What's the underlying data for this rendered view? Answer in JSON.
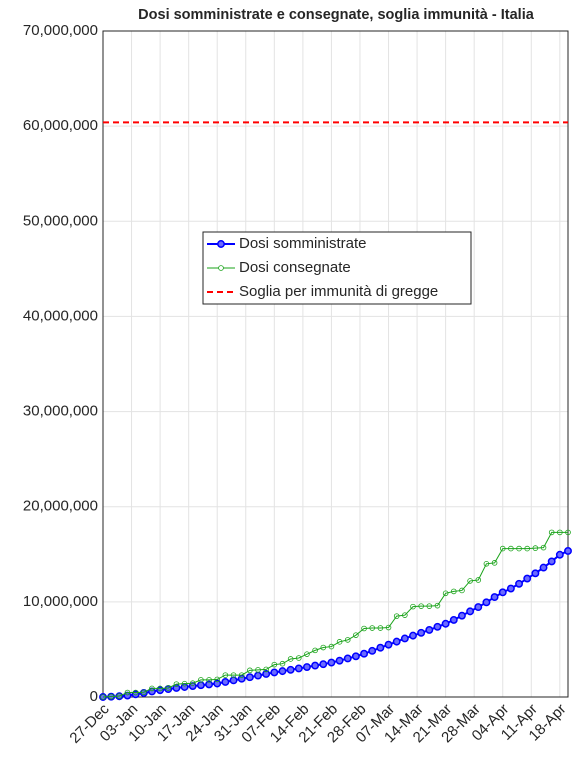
{
  "chart_data": {
    "type": "line",
    "title": "Dosi somministrate e consegnate, soglia immunità - Italia",
    "x": [
      0,
      2,
      4,
      6,
      8,
      10,
      12,
      14,
      16,
      18,
      20,
      22,
      24,
      26,
      28,
      30,
      32,
      34,
      36,
      38,
      40,
      42,
      44,
      46,
      48,
      50,
      52,
      54,
      56,
      58,
      60,
      62,
      64,
      66,
      68,
      70,
      72,
      74,
      76,
      78,
      80,
      82,
      84,
      86,
      88,
      90,
      92,
      94,
      96,
      98,
      100,
      102,
      104,
      106,
      108,
      110,
      112,
      114
    ],
    "series": [
      {
        "name": "Dosi somministrate",
        "color": "#0000ff",
        "marker": "filled",
        "values": [
          0,
          30000,
          80000,
          150000,
          280000,
          420000,
          580000,
          720000,
          830000,
          950000,
          1050000,
          1150000,
          1240000,
          1320000,
          1420000,
          1580000,
          1750000,
          1920000,
          2080000,
          2250000,
          2420000,
          2580000,
          2720000,
          2860000,
          3000000,
          3150000,
          3300000,
          3450000,
          3620000,
          3820000,
          4050000,
          4280000,
          4550000,
          4850000,
          5180000,
          5500000,
          5820000,
          6150000,
          6450000,
          6750000,
          7050000,
          7380000,
          7700000,
          8100000,
          8550000,
          9000000,
          9450000,
          9950000,
          10500000,
          11000000,
          11400000,
          11900000,
          12450000,
          13000000,
          13600000,
          14250000,
          14950000,
          15350000
        ]
      },
      {
        "name": "Dosi consegnate",
        "color": "#1aa31a",
        "marker": "hollow",
        "values": [
          0,
          50000,
          100000,
          470000,
          470000,
          500000,
          900000,
          900000,
          950000,
          1350000,
          1400000,
          1450000,
          1800000,
          1800000,
          1850000,
          2300000,
          2300000,
          2300000,
          2800000,
          2850000,
          2900000,
          3400000,
          3500000,
          4000000,
          4100000,
          4500000,
          4900000,
          5200000,
          5300000,
          5800000,
          6000000,
          6500000,
          7200000,
          7250000,
          7250000,
          7300000,
          8500000,
          8600000,
          9500000,
          9550000,
          9550000,
          9600000,
          10900000,
          11100000,
          11200000,
          12200000,
          12300000,
          14000000,
          14100000,
          15600000,
          15600000,
          15600000,
          15600000,
          15650000,
          15700000,
          17300000,
          17300000,
          17300000
        ]
      }
    ],
    "reference_line": {
      "name": "Soglia per immunità di gregge",
      "value": 60400000,
      "color": "#ff0000",
      "style": "dashed"
    },
    "xlim": [
      0,
      114
    ],
    "xticks": [
      {
        "value": 0,
        "label": "27-Dec"
      },
      {
        "value": 7,
        "label": "03-Jan"
      },
      {
        "value": 14,
        "label": "10-Jan"
      },
      {
        "value": 21,
        "label": "17-Jan"
      },
      {
        "value": 28,
        "label": "24-Jan"
      },
      {
        "value": 35,
        "label": "31-Jan"
      },
      {
        "value": 42,
        "label": "07-Feb"
      },
      {
        "value": 49,
        "label": "14-Feb"
      },
      {
        "value": 56,
        "label": "21-Feb"
      },
      {
        "value": 63,
        "label": "28-Feb"
      },
      {
        "value": 70,
        "label": "07-Mar"
      },
      {
        "value": 77,
        "label": "14-Mar"
      },
      {
        "value": 84,
        "label": "21-Mar"
      },
      {
        "value": 91,
        "label": "28-Mar"
      },
      {
        "value": 98,
        "label": "04-Apr"
      },
      {
        "value": 105,
        "label": "11-Apr"
      },
      {
        "value": 112,
        "label": "18-Apr"
      }
    ],
    "ylim": [
      0,
      70000000
    ],
    "yticks": [
      0,
      {
        "value": 10000000,
        "label": "10,000,000"
      },
      {
        "value": 20000000,
        "label": "20,000,000"
      },
      {
        "value": 30000000,
        "label": "30,000,000"
      },
      {
        "value": 40000000,
        "label": "40,000,000"
      },
      {
        "value": 50000000,
        "label": "50,000,000"
      },
      {
        "value": 60000000,
        "label": "60,000,000"
      },
      {
        "value": 70000000,
        "label": "70,000,000"
      }
    ],
    "grid": true,
    "legend": "center"
  }
}
